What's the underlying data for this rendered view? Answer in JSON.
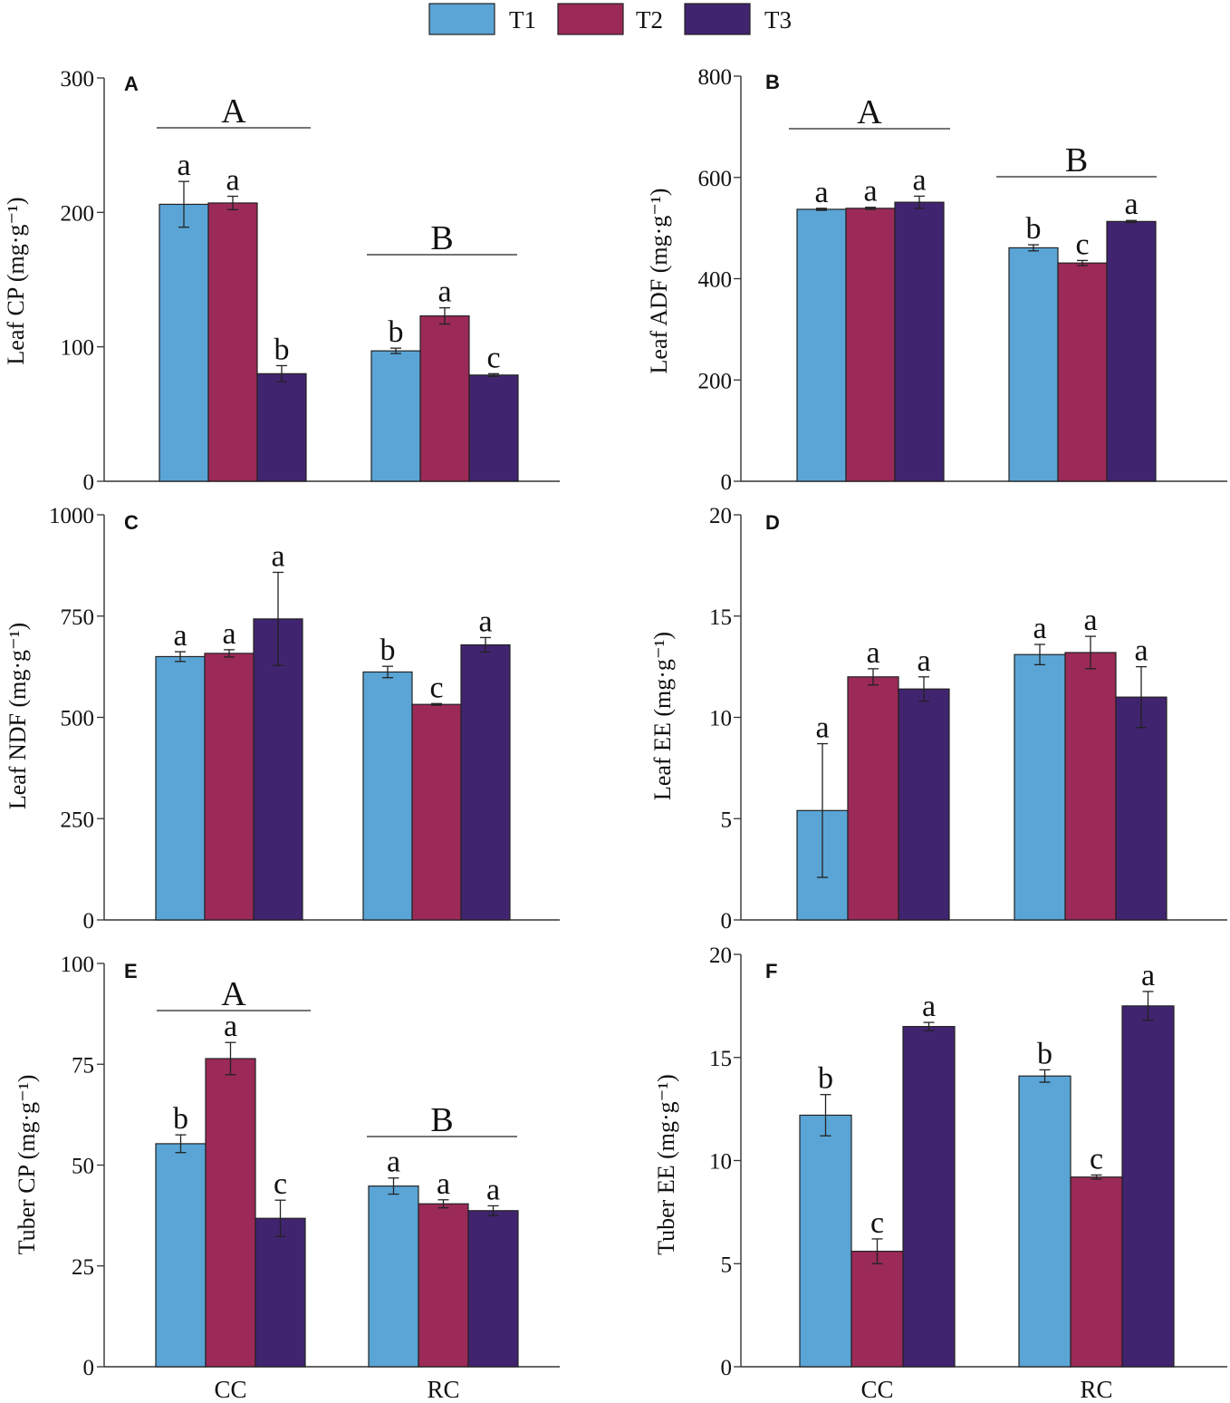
{
  "legend": [
    {
      "label": "T1",
      "color": "#5aa5d6"
    },
    {
      "label": "T2",
      "color": "#9b2a58"
    },
    {
      "label": "T3",
      "color": "#412470"
    }
  ],
  "group_labels": [
    "CC",
    "RC"
  ],
  "chart_data": [
    {
      "type": "bar",
      "panel": "A",
      "ylabel": "Leaf CP (mg·g⁻¹)",
      "ylim": [
        0,
        300
      ],
      "yticks": [
        0,
        100,
        200,
        300
      ],
      "categories": [
        "CC",
        "RC"
      ],
      "series": [
        {
          "name": "T1",
          "values": [
            206,
            97
          ],
          "errors": [
            17,
            2
          ],
          "letters": [
            "a",
            "b"
          ]
        },
        {
          "name": "T2",
          "values": [
            207,
            123
          ],
          "errors": [
            5,
            6
          ],
          "letters": [
            "a",
            "a"
          ]
        },
        {
          "name": "T3",
          "values": [
            80,
            79
          ],
          "errors": [
            6,
            1
          ],
          "letters": [
            "b",
            "c"
          ]
        }
      ],
      "group_letters": [
        "A",
        "B"
      ]
    },
    {
      "type": "bar",
      "panel": "B",
      "ylabel": "Leaf ADF (mg·g⁻¹)",
      "ylim": [
        0,
        800
      ],
      "yticks": [
        0,
        200,
        400,
        600,
        800
      ],
      "categories": [
        "CC",
        "RC"
      ],
      "series": [
        {
          "name": "T1",
          "values": [
            537,
            461
          ],
          "errors": [
            2,
            6
          ],
          "letters": [
            "a",
            "b"
          ]
        },
        {
          "name": "T2",
          "values": [
            539,
            431
          ],
          "errors": [
            2,
            5
          ],
          "letters": [
            "a",
            "c"
          ]
        },
        {
          "name": "T3",
          "values": [
            551,
            513
          ],
          "errors": [
            12,
            2
          ],
          "letters": [
            "a",
            "a"
          ]
        }
      ],
      "group_letters": [
        "A",
        "B"
      ]
    },
    {
      "type": "bar",
      "panel": "C",
      "ylabel": "Leaf NDF (mg·g⁻¹)",
      "ylim": [
        0,
        1000
      ],
      "yticks": [
        0,
        250,
        500,
        750,
        1000
      ],
      "categories": [
        "CC",
        "RC"
      ],
      "series": [
        {
          "name": "T1",
          "values": [
            650,
            612
          ],
          "errors": [
            12,
            14
          ],
          "letters": [
            "a",
            "b"
          ]
        },
        {
          "name": "T2",
          "values": [
            658,
            532
          ],
          "errors": [
            9,
            2
          ],
          "letters": [
            "a",
            "c"
          ]
        },
        {
          "name": "T3",
          "values": [
            743,
            679
          ],
          "errors": [
            115,
            18
          ],
          "letters": [
            "a",
            "a"
          ]
        }
      ],
      "group_letters": [
        "",
        ""
      ]
    },
    {
      "type": "bar",
      "panel": "D",
      "ylabel": "Leaf EE (mg·g⁻¹)",
      "ylim": [
        0,
        20
      ],
      "yticks": [
        0,
        5,
        10,
        15,
        20
      ],
      "categories": [
        "CC",
        "RC"
      ],
      "series": [
        {
          "name": "T1",
          "values": [
            5.4,
            13.1
          ],
          "errors": [
            3.3,
            0.5
          ],
          "letters": [
            "a",
            "a"
          ]
        },
        {
          "name": "T2",
          "values": [
            12.0,
            13.2
          ],
          "errors": [
            0.4,
            0.8
          ],
          "letters": [
            "a",
            "a"
          ]
        },
        {
          "name": "T3",
          "values": [
            11.4,
            11.0
          ],
          "errors": [
            0.6,
            1.5
          ],
          "letters": [
            "a",
            "a"
          ]
        }
      ],
      "group_letters": [
        "",
        ""
      ]
    },
    {
      "type": "bar",
      "panel": "E",
      "ylabel": "Tuber CP (mg·g⁻¹)",
      "ylim": [
        0,
        100
      ],
      "yticks": [
        0,
        25,
        50,
        75,
        100
      ],
      "categories": [
        "CC",
        "RC"
      ],
      "series": [
        {
          "name": "T1",
          "values": [
            55.3,
            44.8
          ],
          "errors": [
            2.2,
            2.0
          ],
          "letters": [
            "b",
            "a"
          ]
        },
        {
          "name": "T2",
          "values": [
            76.4,
            40.4
          ],
          "errors": [
            4.0,
            1.0
          ],
          "letters": [
            "a",
            "a"
          ]
        },
        {
          "name": "T3",
          "values": [
            36.8,
            38.7
          ],
          "errors": [
            4.5,
            1.2
          ],
          "letters": [
            "c",
            "a"
          ]
        }
      ],
      "group_letters": [
        "A",
        "B"
      ]
    },
    {
      "type": "bar",
      "panel": "F",
      "ylabel": "Tuber EE (mg·g⁻¹)",
      "ylim": [
        0,
        20
      ],
      "yticks": [
        0,
        5,
        10,
        15,
        20
      ],
      "categories": [
        "CC",
        "RC"
      ],
      "series": [
        {
          "name": "T1",
          "values": [
            12.2,
            14.1
          ],
          "errors": [
            1.0,
            0.3
          ],
          "letters": [
            "b",
            "b"
          ]
        },
        {
          "name": "T2",
          "values": [
            5.6,
            9.2
          ],
          "errors": [
            0.6,
            0.1
          ],
          "letters": [
            "c",
            "c"
          ]
        },
        {
          "name": "T3",
          "values": [
            16.5,
            17.5
          ],
          "errors": [
            0.2,
            0.7
          ],
          "letters": [
            "a",
            "a"
          ]
        }
      ],
      "group_letters": [
        "",
        ""
      ]
    }
  ]
}
